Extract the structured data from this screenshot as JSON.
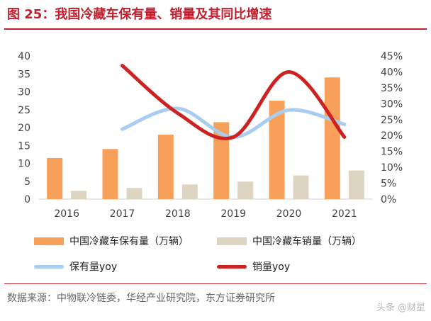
{
  "figure": {
    "title": "图 25：我国冷藏车保有量、销量及其同比增速",
    "source": "数据来源：中物联冷链委，华经产业研究院，东方证券研究所",
    "watermark": "头条 @财星"
  },
  "chart_data": {
    "type": "bar",
    "categories": [
      "2016",
      "2017",
      "2018",
      "2019",
      "2020",
      "2021"
    ],
    "series": [
      {
        "name": "中国冷藏车保有量（万辆）",
        "kind": "bar",
        "axis": "left",
        "color": "#f6a05a",
        "values": [
          11.5,
          14.0,
          18.0,
          21.5,
          27.5,
          34.0
        ]
      },
      {
        "name": "中国冷藏车销量（万辆）",
        "kind": "bar",
        "axis": "left",
        "color": "#ddd4c2",
        "values": [
          2.3,
          3.1,
          4.1,
          4.9,
          6.6,
          8.0
        ]
      },
      {
        "name": "保有量yoy",
        "kind": "line",
        "axis": "right",
        "color": "#a9cdf0",
        "values": [
          null,
          22.0,
          28.5,
          19.5,
          28.0,
          23.5
        ]
      },
      {
        "name": "销量yoy",
        "kind": "line",
        "axis": "right",
        "color": "#cc2222",
        "values": [
          null,
          42.0,
          27.0,
          19.5,
          40.0,
          19.5
        ]
      }
    ],
    "y_left": {
      "min": 0,
      "max": 40,
      "step": 5,
      "tick_labels": [
        "0",
        "5",
        "10",
        "15",
        "20",
        "25",
        "30",
        "35",
        "40"
      ]
    },
    "y_right": {
      "min": 0,
      "max": 45,
      "step": 5,
      "tick_labels": [
        "0%",
        "5%",
        "10%",
        "15%",
        "20%",
        "25%",
        "30%",
        "35%",
        "40%",
        "45%"
      ]
    },
    "grid": false,
    "legend_position": "bottom"
  }
}
